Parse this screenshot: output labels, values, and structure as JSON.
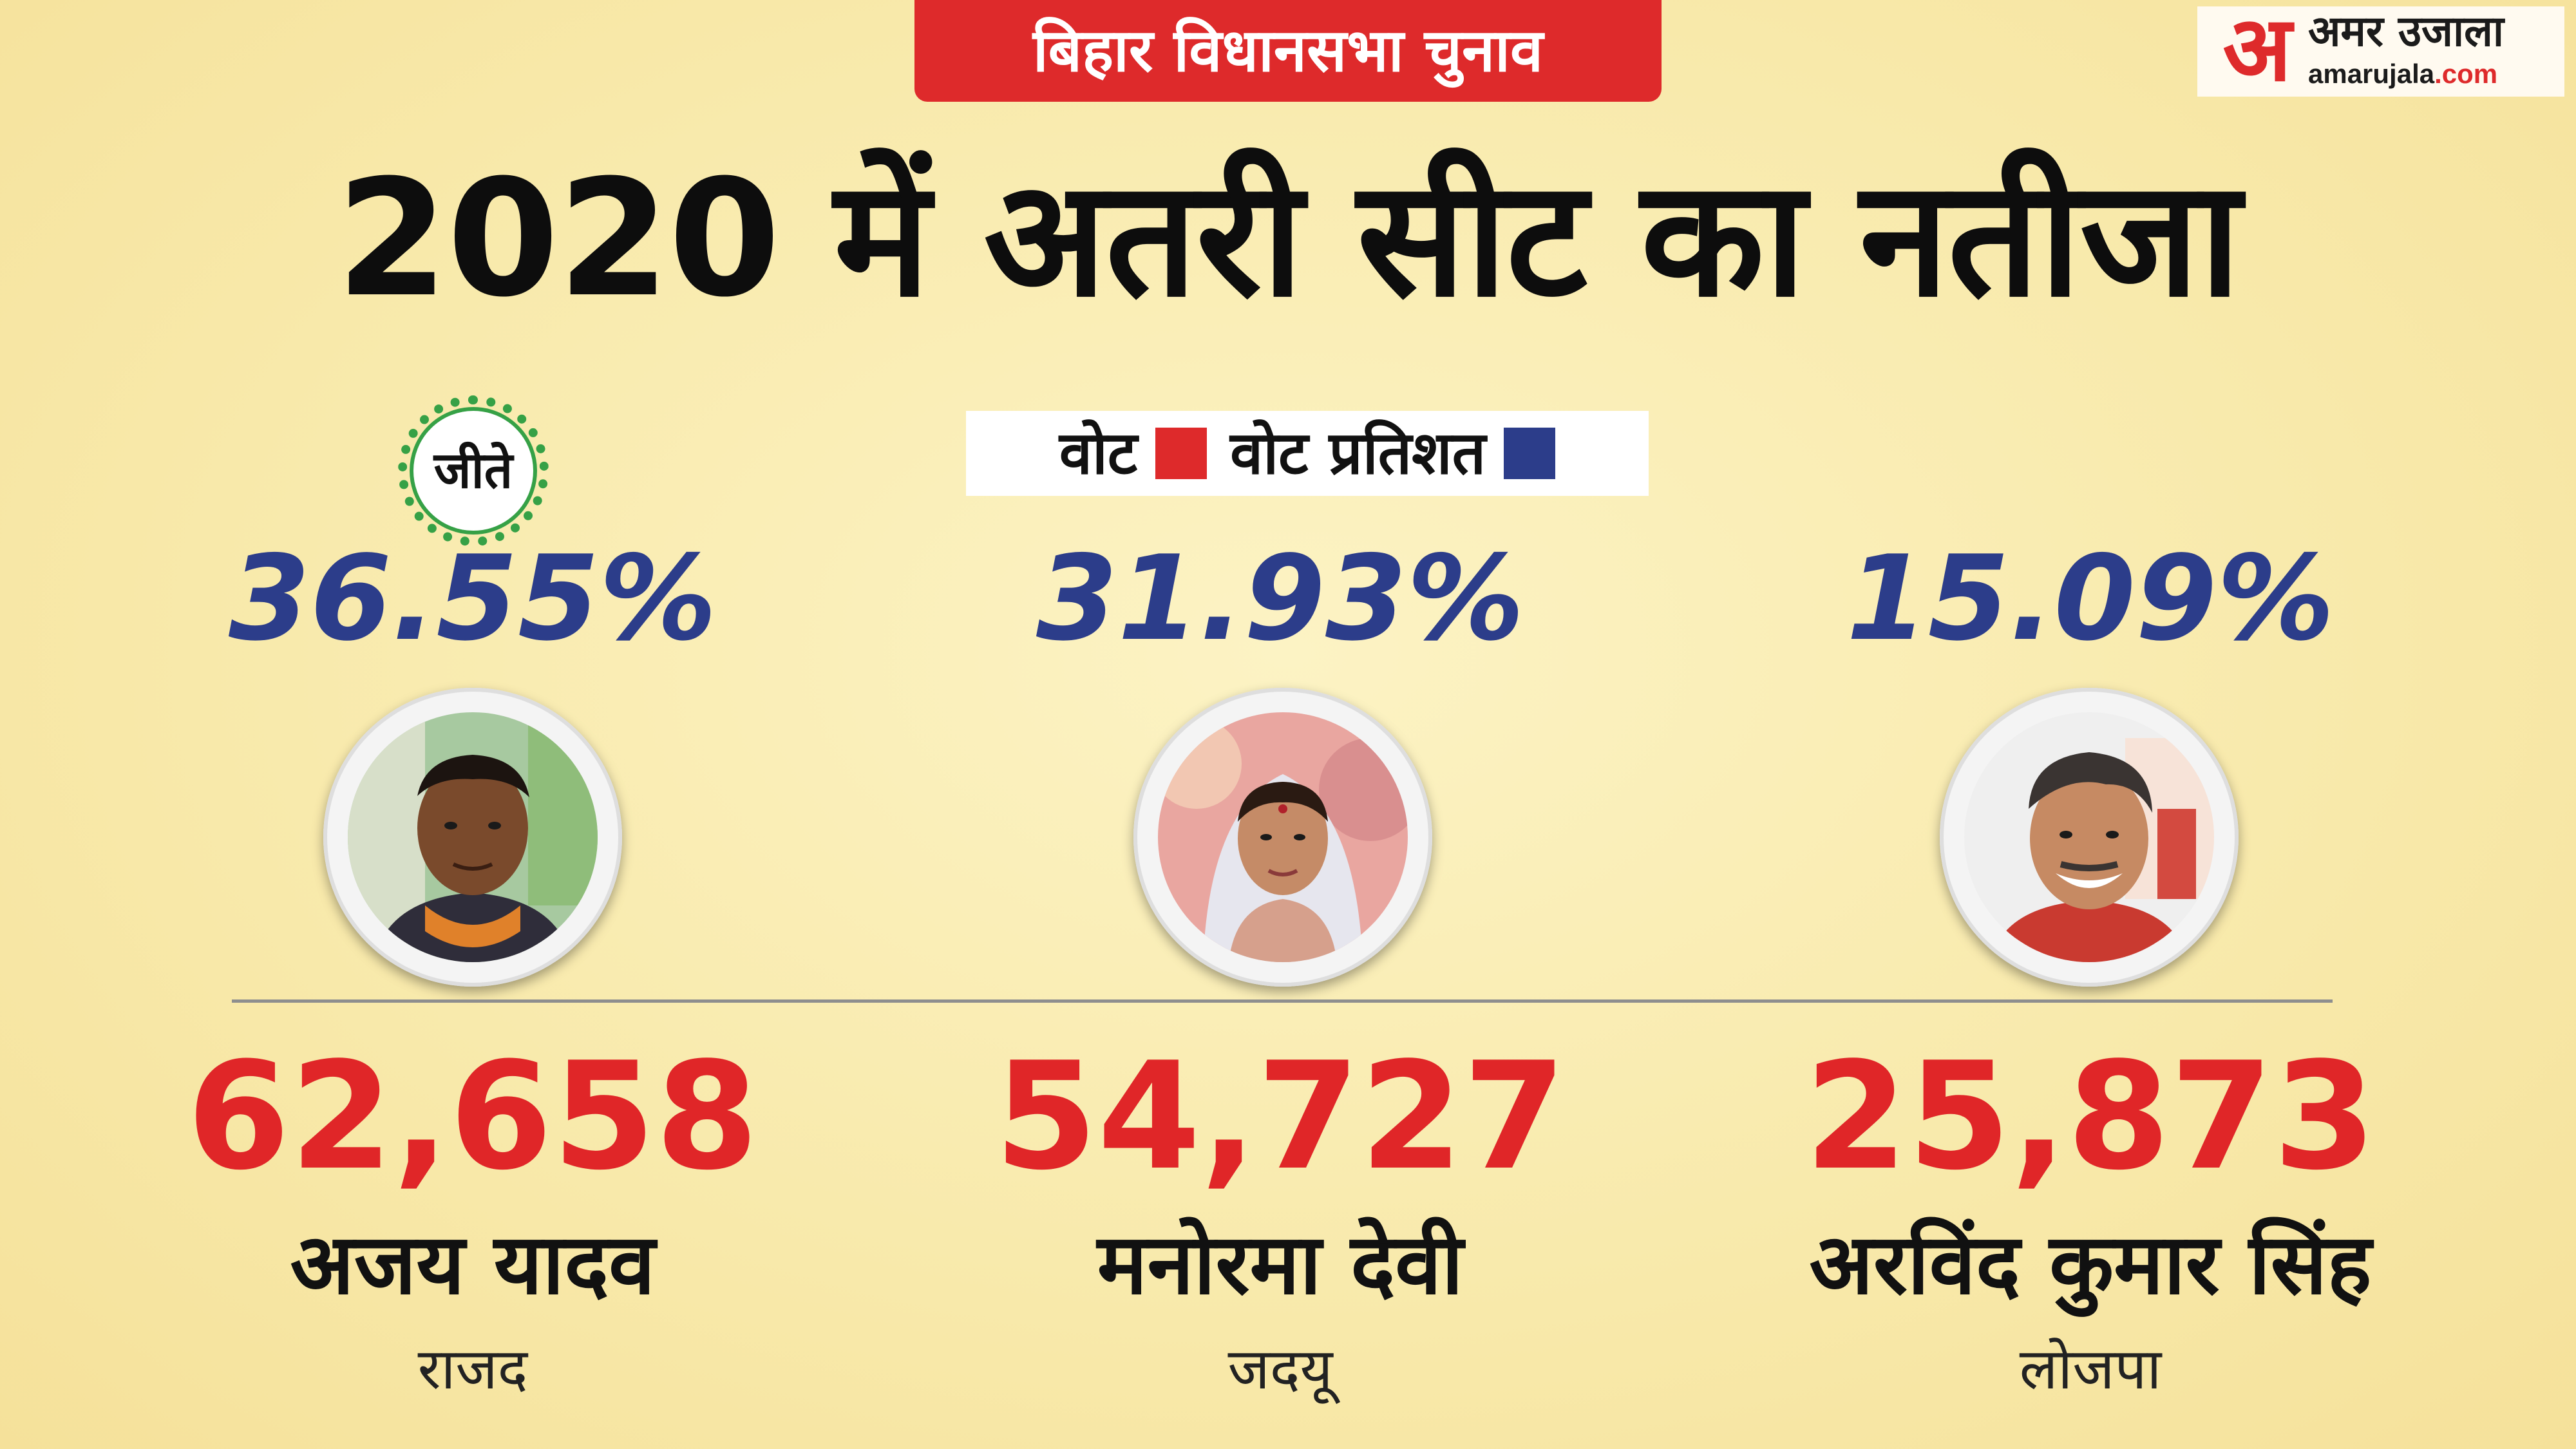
{
  "header": {
    "tag": "बिहार विधानसभा चुनाव",
    "title": "2020 में अतरी सीट का नतीजा"
  },
  "logo": {
    "mark": "अ",
    "hindi": "अमर उजाला",
    "url_main": "amarujala",
    "url_suffix": ".com"
  },
  "legend": {
    "votes_label": "वोट",
    "votes_color": "#de2a2b",
    "percent_label": "वोट प्रतिशत",
    "percent_color": "#2c3d8a"
  },
  "winner_badge": "जीते",
  "candidates": [
    {
      "name": "अजय यादव",
      "party": "राजद",
      "votes": "62,658",
      "percent": "36.55%",
      "winner": true
    },
    {
      "name": "मनोरमा देवी",
      "party": "जदयू",
      "votes": "54,727",
      "percent": "31.93%",
      "winner": false
    },
    {
      "name": "अरविंद कुमार सिंह",
      "party": "लोजपा",
      "votes": "25,873",
      "percent": "15.09%",
      "winner": false
    }
  ]
}
